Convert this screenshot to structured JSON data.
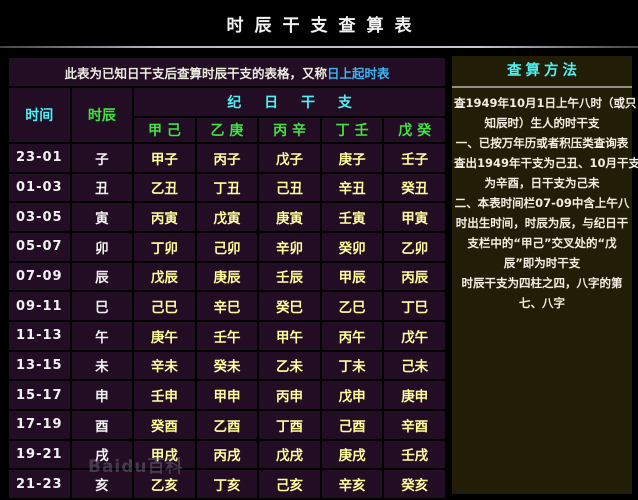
{
  "title": "时辰干支查算表",
  "table": {
    "subtitle": {
      "prefix": "此表为已知日干支后查算时辰干支的表格，又称",
      "highlight": "日上起时表"
    },
    "headers": {
      "time": "时间",
      "shichen": "时辰",
      "group": "纪 日 干 支",
      "day_stems": [
        "甲 己",
        "乙 庚",
        "丙 辛",
        "丁 壬",
        "戊 癸"
      ]
    },
    "rows": [
      {
        "time": "23-01",
        "branch": "子",
        "ganzhi": [
          "甲子",
          "丙子",
          "戊子",
          "庚子",
          "壬子"
        ]
      },
      {
        "time": "01-03",
        "branch": "丑",
        "ganzhi": [
          "乙丑",
          "丁丑",
          "己丑",
          "辛丑",
          "癸丑"
        ]
      },
      {
        "time": "03-05",
        "branch": "寅",
        "ganzhi": [
          "丙寅",
          "戊寅",
          "庚寅",
          "壬寅",
          "甲寅"
        ]
      },
      {
        "time": "05-07",
        "branch": "卯",
        "ganzhi": [
          "丁卯",
          "己卯",
          "辛卯",
          "癸卯",
          "乙卯"
        ]
      },
      {
        "time": "07-09",
        "branch": "辰",
        "ganzhi": [
          "戊辰",
          "庚辰",
          "壬辰",
          "甲辰",
          "丙辰"
        ]
      },
      {
        "time": "09-11",
        "branch": "巳",
        "ganzhi": [
          "己巳",
          "辛巳",
          "癸巳",
          "乙巳",
          "丁巳"
        ]
      },
      {
        "time": "11-13",
        "branch": "午",
        "ganzhi": [
          "庚午",
          "壬午",
          "甲午",
          "丙午",
          "戊午"
        ]
      },
      {
        "time": "13-15",
        "branch": "未",
        "ganzhi": [
          "辛未",
          "癸未",
          "乙未",
          "丁未",
          "己未"
        ]
      },
      {
        "time": "15-17",
        "branch": "申",
        "ganzhi": [
          "壬申",
          "甲申",
          "丙申",
          "戊申",
          "庚申"
        ]
      },
      {
        "time": "17-19",
        "branch": "酉",
        "ganzhi": [
          "癸酉",
          "乙酉",
          "丁酉",
          "己酉",
          "辛酉"
        ]
      },
      {
        "time": "19-21",
        "branch": "戌",
        "ganzhi": [
          "甲戌",
          "丙戌",
          "戊戌",
          "庚戌",
          "壬戌"
        ]
      },
      {
        "time": "21-23",
        "branch": "亥",
        "ganzhi": [
          "乙亥",
          "丁亥",
          "己亥",
          "辛亥",
          "癸亥"
        ]
      }
    ]
  },
  "method_panel": {
    "title": "查算方法",
    "lines": [
      "查1949年10月1日上午八时（或只",
      "知辰时）生人的时干支",
      "一、已按万年历或者积压类查询表",
      "查出1949年干支为己丑、10月干支",
      "为辛酉，日干支为己未",
      "二、本表时间栏07-09中含上午八",
      "时出生时间，时辰为辰，与纪日干",
      "支栏中的“甲己”交叉处的“戊",
      "辰”即为时干支",
      "时辰干支为四柱之四，八字的第",
      "七、八字"
    ]
  },
  "watermark": "Baidu百科",
  "colors": {
    "accent_cyan": "#4df2f2",
    "accent_green": "#3fe43f",
    "ganzhi_yellow": "#ffff9c",
    "highlight_blue": "#3db4f0",
    "table_bg": "#220d24",
    "panel_bg": "#211d06"
  }
}
